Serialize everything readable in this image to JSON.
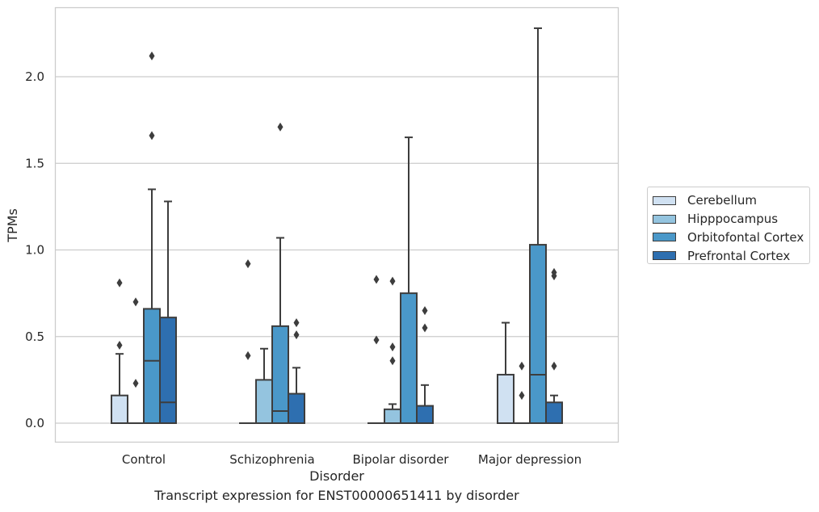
{
  "caption": "Transcript expression for ENST00000651411 by disorder",
  "chart_data": {
    "type": "boxplot",
    "xlabel": "Disorder",
    "ylabel": "TPMs",
    "ylim": [
      -0.11,
      2.4
    ],
    "yticks": [
      0.0,
      0.5,
      1.0,
      1.5,
      2.0
    ],
    "ytick_labels": [
      "0.0",
      "0.5",
      "1.0",
      "1.5",
      "2.0"
    ],
    "grid": "horizontal",
    "legend_placement": "right",
    "categories": [
      "Control",
      "Schizophrenia",
      "Bipolar disorder",
      "Major depression"
    ],
    "series": [
      {
        "name": "Cerebellum",
        "color": "#d0e1f2",
        "boxes": [
          {
            "q1": 0.0,
            "median": 0.0,
            "q3": 0.16,
            "whisker_low": 0.0,
            "whisker_high": 0.4,
            "outliers": [
              0.45,
              0.81
            ]
          },
          {
            "q1": 0.0,
            "median": 0.0,
            "q3": 0.0,
            "whisker_low": 0.0,
            "whisker_high": 0.0,
            "outliers": [
              0.39,
              0.92
            ]
          },
          {
            "q1": 0.0,
            "median": 0.0,
            "q3": 0.0,
            "whisker_low": 0.0,
            "whisker_high": 0.0,
            "outliers": [
              0.48,
              0.83
            ]
          },
          {
            "q1": 0.0,
            "median": 0.0,
            "q3": 0.28,
            "whisker_low": 0.0,
            "whisker_high": 0.58,
            "outliers": []
          }
        ]
      },
      {
        "name": "Hipppocampus",
        "color": "#94c4df",
        "boxes": [
          {
            "q1": 0.0,
            "median": 0.0,
            "q3": 0.0,
            "whisker_low": 0.0,
            "whisker_high": 0.0,
            "outliers": [
              0.23,
              0.7
            ]
          },
          {
            "q1": 0.0,
            "median": 0.0,
            "q3": 0.25,
            "whisker_low": 0.0,
            "whisker_high": 0.43,
            "outliers": []
          },
          {
            "q1": 0.0,
            "median": 0.0,
            "q3": 0.08,
            "whisker_low": 0.0,
            "whisker_high": 0.11,
            "outliers": [
              0.36,
              0.44,
              0.82
            ]
          },
          {
            "q1": 0.0,
            "median": 0.0,
            "q3": 0.0,
            "whisker_low": 0.0,
            "whisker_high": 0.0,
            "outliers": [
              0.16,
              0.33
            ]
          }
        ]
      },
      {
        "name": "Orbitofontal Cortex",
        "color": "#4a98c9",
        "boxes": [
          {
            "q1": 0.0,
            "median": 0.36,
            "q3": 0.66,
            "whisker_low": 0.0,
            "whisker_high": 1.35,
            "outliers": [
              1.66,
              2.12
            ]
          },
          {
            "q1": 0.0,
            "median": 0.07,
            "q3": 0.56,
            "whisker_low": 0.0,
            "whisker_high": 1.07,
            "outliers": [
              1.71
            ]
          },
          {
            "q1": 0.0,
            "median": 0.0,
            "q3": 0.75,
            "whisker_low": 0.0,
            "whisker_high": 1.65,
            "outliers": []
          },
          {
            "q1": 0.0,
            "median": 0.28,
            "q3": 1.03,
            "whisker_low": 0.0,
            "whisker_high": 2.28,
            "outliers": []
          }
        ]
      },
      {
        "name": "Prefrontal Cortex",
        "color": "#2e6fb0",
        "boxes": [
          {
            "q1": 0.0,
            "median": 0.12,
            "q3": 0.61,
            "whisker_low": 0.0,
            "whisker_high": 1.28,
            "outliers": []
          },
          {
            "q1": 0.0,
            "median": 0.0,
            "q3": 0.17,
            "whisker_low": 0.0,
            "whisker_high": 0.32,
            "outliers": [
              0.51,
              0.58
            ]
          },
          {
            "q1": 0.0,
            "median": 0.0,
            "q3": 0.1,
            "whisker_low": 0.0,
            "whisker_high": 0.22,
            "outliers": [
              0.55,
              0.65
            ]
          },
          {
            "q1": 0.0,
            "median": 0.0,
            "q3": 0.12,
            "whisker_low": 0.0,
            "whisker_high": 0.16,
            "outliers": [
              0.33,
              0.85,
              0.87
            ]
          }
        ]
      }
    ]
  }
}
